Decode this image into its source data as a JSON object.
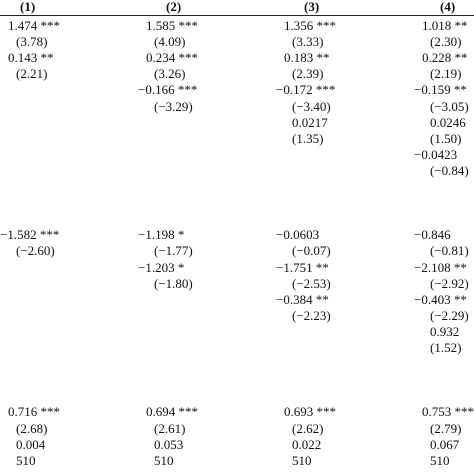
{
  "table": {
    "headers": [
      "(1)",
      "(2)",
      "(3)",
      "(4)"
    ],
    "columns": [
      {
        "cells": [
          {
            "row": 0,
            "text": "1.474 ***"
          },
          {
            "row": 1,
            "text": "(3.78)"
          },
          {
            "row": 2,
            "text": "0.143 **"
          },
          {
            "row": 3,
            "text": "(2.21)"
          },
          {
            "row": 13,
            "text": "−1.582 ***"
          },
          {
            "row": 14,
            "text": "(−2.60)"
          },
          {
            "row": 24,
            "text": "0.716 ***"
          },
          {
            "row": 25,
            "text": "(2.68)"
          },
          {
            "row": 26,
            "text": "0.004"
          },
          {
            "row": 27,
            "text": "510"
          }
        ]
      },
      {
        "cells": [
          {
            "row": 0,
            "text": "1.585 ***"
          },
          {
            "row": 1,
            "text": "(4.09)"
          },
          {
            "row": 2,
            "text": "0.234 ***"
          },
          {
            "row": 3,
            "text": "(3.26)"
          },
          {
            "row": 4,
            "text": "−0.166 ***"
          },
          {
            "row": 5,
            "text": "(−3.29)"
          },
          {
            "row": 13,
            "text": "−1.198 *"
          },
          {
            "row": 14,
            "text": "(−1.77)"
          },
          {
            "row": 15,
            "text": "−1.203 *"
          },
          {
            "row": 16,
            "text": "(−1.80)"
          },
          {
            "row": 24,
            "text": "0.694 ***"
          },
          {
            "row": 25,
            "text": "(2.61)"
          },
          {
            "row": 26,
            "text": "0.053"
          },
          {
            "row": 27,
            "text": "510"
          }
        ]
      },
      {
        "cells": [
          {
            "row": 0,
            "text": "1.356 ***"
          },
          {
            "row": 1,
            "text": "(3.33)"
          },
          {
            "row": 2,
            "text": "0.183 **"
          },
          {
            "row": 3,
            "text": "(2.39)"
          },
          {
            "row": 4,
            "text": "−0.172 ***"
          },
          {
            "row": 5,
            "text": "(−3.40)"
          },
          {
            "row": 6,
            "text": "0.0217"
          },
          {
            "row": 7,
            "text": "(1.35)"
          },
          {
            "row": 13,
            "text": "−0.0603"
          },
          {
            "row": 14,
            "text": "(−0.07)"
          },
          {
            "row": 15,
            "text": "−1.751 **"
          },
          {
            "row": 16,
            "text": "(−2.53)"
          },
          {
            "row": 17,
            "text": "−0.384 **"
          },
          {
            "row": 18,
            "text": "(−2.23)"
          },
          {
            "row": 24,
            "text": "0.693 ***"
          },
          {
            "row": 25,
            "text": "(2.62)"
          },
          {
            "row": 26,
            "text": "0.022"
          },
          {
            "row": 27,
            "text": "510"
          }
        ]
      },
      {
        "cells": [
          {
            "row": 0,
            "text": "1.018 **"
          },
          {
            "row": 1,
            "text": "(2.30)"
          },
          {
            "row": 2,
            "text": "0.228 **"
          },
          {
            "row": 3,
            "text": "(2.19)"
          },
          {
            "row": 4,
            "text": "−0.159 **"
          },
          {
            "row": 5,
            "text": "(−3.05)"
          },
          {
            "row": 6,
            "text": "0.0246"
          },
          {
            "row": 7,
            "text": "(1.50)"
          },
          {
            "row": 8,
            "text": "−0.0423"
          },
          {
            "row": 9,
            "text": "(−0.84)"
          },
          {
            "row": 13,
            "text": "−0.846"
          },
          {
            "row": 14,
            "text": "(−0.81)"
          },
          {
            "row": 15,
            "text": "−2.108 **"
          },
          {
            "row": 16,
            "text": "(−2.92)"
          },
          {
            "row": 17,
            "text": "−0.403 **"
          },
          {
            "row": 18,
            "text": "(−2.29)"
          },
          {
            "row": 19,
            "text": "0.932"
          },
          {
            "row": 20,
            "text": "(1.52)"
          },
          {
            "row": 24,
            "text": "0.753 ***"
          },
          {
            "row": 25,
            "text": "(2.79)"
          },
          {
            "row": 26,
            "text": "0.067"
          },
          {
            "row": 27,
            "text": "510"
          }
        ]
      }
    ]
  }
}
